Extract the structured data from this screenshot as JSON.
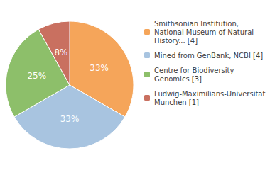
{
  "chart_data": {
    "type": "pie",
    "categories": [
      "Smithsonian Institution,\nNational Museum of Natural\nHistory... [4]",
      "Mined from GenBank, NCBI [4]",
      "Centre for Biodiversity\nGenomics [3]",
      "Ludwig-Maximilians-Universitat\nMunchen [1]"
    ],
    "values": [
      33,
      33,
      25,
      8
    ],
    "value_labels": [
      "33%",
      "33%",
      "25%",
      "8%"
    ],
    "colors": [
      "#F5A55A",
      "#A8C4E0",
      "#8DBF6A",
      "#C97060"
    ],
    "data_labels": true,
    "legend": "right"
  }
}
